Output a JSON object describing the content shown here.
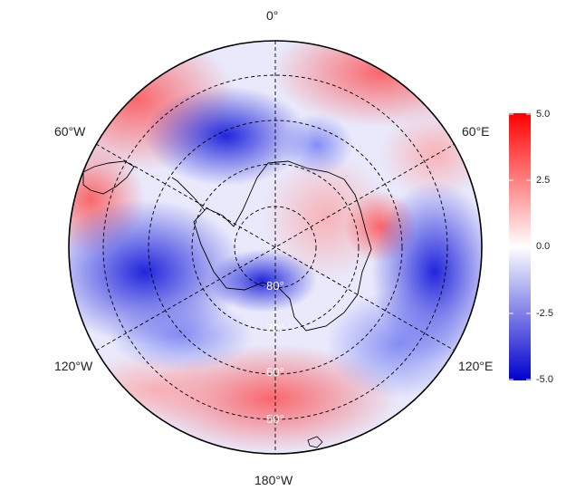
{
  "map": {
    "longitude_labels": [
      "0°",
      "60°E",
      "120°E",
      "180°W",
      "120°W",
      "60°W"
    ],
    "latitude_labels": [
      "80°",
      "70°",
      "60°",
      "50°"
    ],
    "projection": "south-polar stereographic"
  },
  "colorbar": {
    "ticks": [
      "5.0",
      "2.5",
      "0.0",
      "-2.5",
      "-5.0"
    ],
    "range": [
      -5,
      5
    ],
    "colors": {
      "high": "#ff0000",
      "mid": "#ffffff",
      "low": "#0000cd"
    }
  }
}
